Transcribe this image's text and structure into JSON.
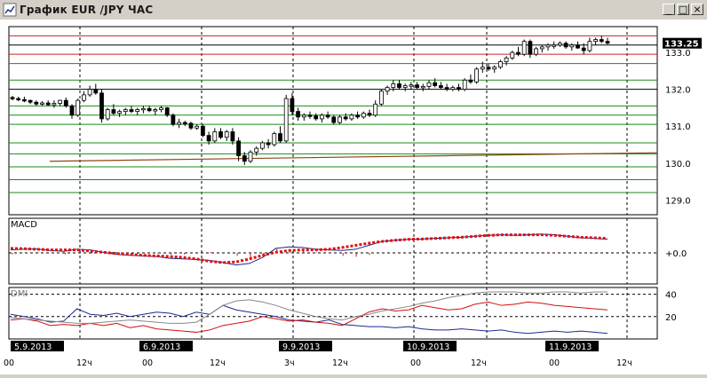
{
  "window": {
    "title": "График EUR /JPY ЧАС",
    "minimize_label": "_",
    "maximize_label": "□",
    "close_label": "×"
  },
  "colors": {
    "background": "#ffffff",
    "grid_black": "#000000",
    "level_green": "#1a8a1a",
    "level_red": "#cc2020",
    "ma_brown": "#8b4513",
    "macd_blue": "#1c2a8c",
    "macd_signal": "#e01010",
    "dmi_plus": "#1c2a8c",
    "dmi_minus": "#d01010",
    "adx": "#888888",
    "date_label_bg": "#000000",
    "date_label_fg": "#ffffff"
  },
  "chart_data": [
    {
      "type": "candlestick",
      "title": "График EUR /JPY ЧАС",
      "price_axis": {
        "ticks": [
          "133.0",
          "132.0",
          "131.0",
          "130.0",
          "129.0"
        ],
        "range": [
          128.6,
          133.7
        ]
      },
      "last_price": "133.25",
      "date_labels": [
        "5.9.2013",
        "6.9.2013",
        "9.9.2013",
        "10.9.2013",
        "11.9.2013"
      ],
      "time_labels": [
        "00",
        "12ч",
        "00",
        "12ч",
        "3ч",
        "12ч",
        "00",
        "12ч",
        "00",
        "12ч"
      ],
      "horizontal_levels": {
        "red": [
          133.45,
          132.95
        ],
        "black": [
          133.2,
          132.0
        ],
        "green": [
          132.7,
          132.25,
          131.55,
          131.3,
          131.05,
          130.55,
          130.25,
          129.9,
          129.55,
          129.2
        ]
      },
      "moving_average": {
        "start": 130.05,
        "end": 130.28
      },
      "candles": [
        [
          131.78,
          131.82,
          131.7,
          131.75
        ],
        [
          131.75,
          131.8,
          131.68,
          131.72
        ],
        [
          131.72,
          131.8,
          131.65,
          131.7
        ],
        [
          131.7,
          131.72,
          131.6,
          131.65
        ],
        [
          131.65,
          131.7,
          131.55,
          131.6
        ],
        [
          131.6,
          131.68,
          131.55,
          131.63
        ],
        [
          131.63,
          131.7,
          131.55,
          131.58
        ],
        [
          131.58,
          131.7,
          131.5,
          131.62
        ],
        [
          131.62,
          131.72,
          131.55,
          131.7
        ],
        [
          131.7,
          131.78,
          131.5,
          131.55
        ],
        [
          131.55,
          131.6,
          131.2,
          131.3
        ],
        [
          131.3,
          131.75,
          131.25,
          131.7
        ],
        [
          131.7,
          131.95,
          131.65,
          131.85
        ],
        [
          131.85,
          132.1,
          131.8,
          132.0
        ],
        [
          132.0,
          132.15,
          131.85,
          131.9
        ],
        [
          131.9,
          132.0,
          131.1,
          131.2
        ],
        [
          131.2,
          131.5,
          131.15,
          131.45
        ],
        [
          131.45,
          131.6,
          131.3,
          131.35
        ],
        [
          131.35,
          131.45,
          131.25,
          131.4
        ],
        [
          131.4,
          131.5,
          131.3,
          131.45
        ],
        [
          131.45,
          131.55,
          131.35,
          131.4
        ],
        [
          131.4,
          131.5,
          131.3,
          131.45
        ],
        [
          131.45,
          131.55,
          131.35,
          131.48
        ],
        [
          131.48,
          131.55,
          131.38,
          131.42
        ],
        [
          131.42,
          131.5,
          131.3,
          131.45
        ],
        [
          131.45,
          131.55,
          131.38,
          131.5
        ],
        [
          131.5,
          131.52,
          131.25,
          131.3
        ],
        [
          131.3,
          131.35,
          131.0,
          131.05
        ],
        [
          131.05,
          131.2,
          130.95,
          131.1
        ],
        [
          131.1,
          131.15,
          131.0,
          131.08
        ],
        [
          131.08,
          131.12,
          130.9,
          130.95
        ],
        [
          130.95,
          131.05,
          130.9,
          131.0
        ],
        [
          131.0,
          131.05,
          130.7,
          130.75
        ],
        [
          130.75,
          130.85,
          130.5,
          130.6
        ],
        [
          130.6,
          130.95,
          130.55,
          130.85
        ],
        [
          130.85,
          130.95,
          130.65,
          130.7
        ],
        [
          130.7,
          130.9,
          130.6,
          130.85
        ],
        [
          130.85,
          130.95,
          130.5,
          130.6
        ],
        [
          130.6,
          130.7,
          130.05,
          130.2
        ],
        [
          130.2,
          130.3,
          129.95,
          130.05
        ],
        [
          130.05,
          130.35,
          130.0,
          130.3
        ],
        [
          130.3,
          130.45,
          130.2,
          130.4
        ],
        [
          130.4,
          130.6,
          130.35,
          130.55
        ],
        [
          130.55,
          130.65,
          130.4,
          130.5
        ],
        [
          130.5,
          130.85,
          130.45,
          130.8
        ],
        [
          130.8,
          131.0,
          130.55,
          130.6
        ],
        [
          130.6,
          131.85,
          130.55,
          131.75
        ],
        [
          131.75,
          131.9,
          131.3,
          131.4
        ],
        [
          131.4,
          131.5,
          131.15,
          131.25
        ],
        [
          131.25,
          131.35,
          131.15,
          131.3
        ],
        [
          131.3,
          131.4,
          131.2,
          131.28
        ],
        [
          131.28,
          131.35,
          131.15,
          131.2
        ],
        [
          131.2,
          131.35,
          131.1,
          131.3
        ],
        [
          131.3,
          131.4,
          131.2,
          131.25
        ],
        [
          131.25,
          131.3,
          131.05,
          131.1
        ],
        [
          131.1,
          131.3,
          131.05,
          131.25
        ],
        [
          131.25,
          131.35,
          131.15,
          131.2
        ],
        [
          131.2,
          131.35,
          131.15,
          131.3
        ],
        [
          131.3,
          131.4,
          131.2,
          131.25
        ],
        [
          131.25,
          131.4,
          131.2,
          131.35
        ],
        [
          131.35,
          131.45,
          131.25,
          131.3
        ],
        [
          131.3,
          131.7,
          131.25,
          131.6
        ],
        [
          131.6,
          132.0,
          131.55,
          131.95
        ],
        [
          131.95,
          132.1,
          131.85,
          132.05
        ],
        [
          132.05,
          132.25,
          131.95,
          132.15
        ],
        [
          132.15,
          132.25,
          132.0,
          132.05
        ],
        [
          132.05,
          132.15,
          131.95,
          132.1
        ],
        [
          132.1,
          132.2,
          132.0,
          132.12
        ],
        [
          132.12,
          132.2,
          132.0,
          132.05
        ],
        [
          132.05,
          132.15,
          131.95,
          132.08
        ],
        [
          132.08,
          132.25,
          132.0,
          132.18
        ],
        [
          132.18,
          132.3,
          132.05,
          132.1
        ],
        [
          132.1,
          132.2,
          132.0,
          132.05
        ],
        [
          132.05,
          132.15,
          131.95,
          132.0
        ],
        [
          132.0,
          132.1,
          131.95,
          132.05
        ],
        [
          132.05,
          132.15,
          131.95,
          132.0
        ],
        [
          132.0,
          132.3,
          131.95,
          132.25
        ],
        [
          132.25,
          132.4,
          132.15,
          132.2
        ],
        [
          132.2,
          132.6,
          132.15,
          132.55
        ],
        [
          132.55,
          132.75,
          132.45,
          132.6
        ],
        [
          132.6,
          132.7,
          132.5,
          132.55
        ],
        [
          132.55,
          132.65,
          132.45,
          132.6
        ],
        [
          132.6,
          132.8,
          132.55,
          132.75
        ],
        [
          132.75,
          132.9,
          132.65,
          132.85
        ],
        [
          132.85,
          133.05,
          132.8,
          133.0
        ],
        [
          133.0,
          133.15,
          132.9,
          132.95
        ],
        [
          132.95,
          133.35,
          132.9,
          133.3
        ],
        [
          133.3,
          133.35,
          132.85,
          132.95
        ],
        [
          132.95,
          133.15,
          132.9,
          133.1
        ],
        [
          133.1,
          133.2,
          133.0,
          133.15
        ],
        [
          133.15,
          133.25,
          133.05,
          133.2
        ],
        [
          133.2,
          133.3,
          133.1,
          133.2
        ],
        [
          133.2,
          133.3,
          133.15,
          133.25
        ],
        [
          133.25,
          133.3,
          133.1,
          133.15
        ],
        [
          133.15,
          133.25,
          133.05,
          133.2
        ],
        [
          133.2,
          133.3,
          133.1,
          133.12
        ],
        [
          133.12,
          133.25,
          132.95,
          133.05
        ],
        [
          133.05,
          133.4,
          133.0,
          133.3
        ],
        [
          133.3,
          133.4,
          133.2,
          133.35
        ],
        [
          133.35,
          133.45,
          133.25,
          133.3
        ],
        [
          133.3,
          133.4,
          133.22,
          133.25
        ]
      ]
    },
    {
      "type": "line",
      "title": "MACD",
      "ticks": [
        "+0.0"
      ],
      "series": [
        {
          "values": [
            0.1,
            0.12,
            0.13,
            0.08,
            0.05,
            0.12,
            0.1,
            0.02,
            -0.05,
            -0.08,
            -0.1,
            -0.12,
            -0.18,
            -0.2,
            -0.22,
            -0.25,
            -0.32,
            -0.4,
            -0.35,
            -0.15,
            0.15,
            0.2,
            0.18,
            0.12,
            0.1,
            0.08,
            0.12,
            0.25,
            0.38,
            0.42,
            0.45,
            0.46,
            0.48,
            0.5,
            0.52,
            0.55,
            0.58,
            0.6,
            0.58,
            0.6,
            0.62,
            0.6,
            0.55,
            0.5,
            0.48,
            0.45
          ]
        },
        {
          "values": [
            0.15,
            0.14,
            0.12,
            0.1,
            0.1,
            0.1,
            0.06,
            0.02,
            -0.02,
            -0.05,
            -0.08,
            -0.1,
            -0.12,
            -0.15,
            -0.2,
            -0.28,
            -0.32,
            -0.3,
            -0.2,
            -0.08,
            0.02,
            0.08,
            0.1,
            0.1,
            0.12,
            0.18,
            0.25,
            0.32,
            0.38,
            0.42,
            0.45,
            0.46,
            0.48,
            0.5,
            0.52,
            0.55,
            0.58,
            0.6,
            0.6,
            0.6,
            0.6,
            0.58,
            0.55,
            0.52,
            0.5,
            0.48
          ]
        }
      ],
      "histogram": [
        -0.05,
        -0.02,
        0.01,
        -0.02,
        -0.05,
        0.02,
        0.04,
        0.0,
        -0.03,
        -0.03,
        -0.02,
        -0.02,
        -0.06,
        -0.05,
        -0.02,
        0.03,
        0.0,
        -0.1,
        -0.15,
        -0.07,
        0.13,
        0.12,
        0.08,
        0.02,
        -0.02,
        -0.1,
        -0.13,
        -0.07,
        0.0,
        0.0,
        0.0,
        0.0,
        0.0,
        0.0,
        0.0,
        0.0,
        0.0,
        0.0,
        -0.02,
        0.0,
        0.02,
        0.02,
        0.0,
        -0.02,
        -0.02,
        -0.03
      ]
    },
    {
      "type": "line",
      "title": "DMI",
      "ticks": [
        "40",
        "20"
      ],
      "series": [
        {
          "values": [
            22,
            20,
            18,
            15,
            16,
            27,
            22,
            21,
            23,
            20,
            22,
            24,
            23,
            20,
            24,
            22,
            30,
            26,
            24,
            22,
            20,
            17,
            16,
            15,
            17,
            13,
            12,
            11,
            11,
            10,
            11,
            9,
            8,
            8,
            9,
            8,
            7,
            8,
            6,
            5,
            6,
            7,
            6,
            7,
            6,
            5
          ]
        },
        {
          "values": [
            17,
            18,
            16,
            12,
            13,
            12,
            14,
            12,
            14,
            10,
            12,
            9,
            8,
            7,
            6,
            8,
            12,
            14,
            16,
            20,
            18,
            16,
            17,
            15,
            14,
            12,
            18,
            24,
            27,
            25,
            26,
            30,
            28,
            26,
            27,
            31,
            33,
            30,
            31,
            33,
            32,
            30,
            29,
            28,
            27,
            26
          ]
        },
        {
          "values": [
            19,
            18,
            17,
            16,
            15,
            14,
            14,
            15,
            16,
            17,
            16,
            15,
            14,
            14,
            15,
            22,
            30,
            34,
            35,
            33,
            30,
            26,
            23,
            20,
            18,
            17,
            20,
            22,
            25,
            27,
            29,
            32,
            34,
            37,
            39,
            41,
            42,
            42,
            42,
            41,
            41,
            42,
            42,
            41,
            42,
            42
          ]
        }
      ]
    }
  ]
}
